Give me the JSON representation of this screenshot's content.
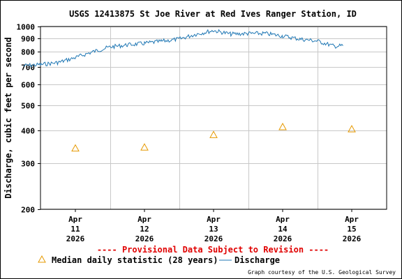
{
  "chart_data": {
    "type": "line",
    "title": "USGS 12413875 St Joe River at Red Ives Ranger Station, ID",
    "ylabel": "Discharge, cubic feet per second",
    "y_scale": "log",
    "ylim": [
      200,
      1000
    ],
    "y_ticks": [
      "1000",
      "900",
      "800",
      "700",
      "600",
      "500",
      "400",
      "300",
      "200"
    ],
    "x_ticks": [
      {
        "month": "Apr",
        "day": "11",
        "year": "2026"
      },
      {
        "month": "Apr",
        "day": "12",
        "year": "2026"
      },
      {
        "month": "Apr",
        "day": "13",
        "year": "2026"
      },
      {
        "month": "Apr",
        "day": "14",
        "year": "2026"
      },
      {
        "month": "Apr",
        "day": "15",
        "year": "2026"
      }
    ],
    "grid": true,
    "series": [
      {
        "name": "Discharge",
        "color": "#1f77b4",
        "x": [
          "Apr 10 06:00",
          "Apr 10 12:00",
          "Apr 10 18:00",
          "Apr 11 00:00",
          "Apr 11 06:00",
          "Apr 11 12:00",
          "Apr 11 18:00",
          "Apr 12 00:00",
          "Apr 12 06:00",
          "Apr 12 12:00",
          "Apr 12 18:00",
          "Apr 13 00:00",
          "Apr 13 06:00",
          "Apr 13 12:00",
          "Apr 13 18:00",
          "Apr 14 00:00",
          "Apr 14 06:00",
          "Apr 14 12:00",
          "Apr 14 18:00",
          "Apr 14 21:00"
        ],
        "values": [
          708,
          715,
          728,
          760,
          800,
          835,
          850,
          862,
          878,
          895,
          935,
          965,
          935,
          940,
          940,
          920,
          895,
          880,
          840,
          845
        ]
      },
      {
        "name": "Median daily statistic (28 years)",
        "color": "#e69900",
        "marker": "triangle",
        "x": [
          "Apr 11",
          "Apr 12",
          "Apr 13",
          "Apr 14",
          "Apr 15"
        ],
        "values": [
          342,
          345,
          385,
          413,
          405
        ]
      }
    ],
    "provisional_note": "---- Provisional Data Subject to Revision ----",
    "legend": {
      "median_label": "Median daily statistic (28 years)",
      "discharge_label": "Discharge",
      "placement": "bottom"
    },
    "credit": "Graph courtesy of the U.S. Geological Survey"
  }
}
